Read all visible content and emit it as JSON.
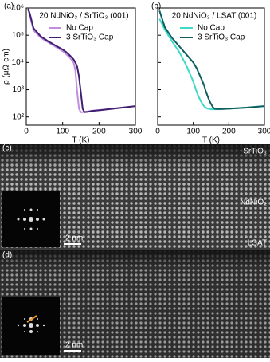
{
  "chart_data": [
    {
      "type": "line",
      "panel": "(a)",
      "title": "20 NdNiO₃ / SrTiO₃ (001)",
      "xlabel": "T (K)",
      "ylabel": "ρ (μΩ-cm)",
      "log_y": true,
      "xlim": [
        0,
        300
      ],
      "ylim": [
        50,
        1000000
      ],
      "xticks": [
        0,
        100,
        200,
        300
      ],
      "yticks": [
        {
          "value": 100,
          "label": "10²"
        },
        {
          "value": 1000,
          "label": "10³"
        },
        {
          "value": 10000,
          "label": "10⁴"
        },
        {
          "value": 100000,
          "label": "10⁵"
        },
        {
          "value": 1000000,
          "label": "10⁶"
        }
      ],
      "x": [
        5,
        10,
        20,
        40,
        60,
        80,
        100,
        110,
        120,
        130,
        135,
        140,
        145,
        150,
        155,
        160,
        170,
        180,
        200,
        250,
        300
      ],
      "series": [
        {
          "name": "No Cap",
          "color": "#c08ee0",
          "values": [
            900000,
            500000,
            150000,
            80000,
            55000,
            38000,
            26000,
            20000,
            15000,
            10000,
            5000,
            800,
            200,
            150,
            150,
            155,
            160,
            170,
            180,
            210,
            250
          ]
        },
        {
          "name": "3 SrTiO₃ Cap",
          "color": "#3f1f6f",
          "values": [
            950000,
            600000,
            180000,
            90000,
            60000,
            42000,
            30000,
            24000,
            18000,
            13000,
            10000,
            7000,
            3000,
            800,
            200,
            150,
            155,
            165,
            175,
            210,
            250
          ]
        }
      ]
    },
    {
      "type": "line",
      "panel": "(b)",
      "title": "20 NdNiO₃ / LSAT (001)",
      "xlabel": "T (K)",
      "log_y": true,
      "xlim": [
        0,
        300
      ],
      "ylim": [
        50,
        1000000
      ],
      "xticks": [
        0,
        100,
        200,
        300
      ],
      "yticks": [
        100,
        1000,
        10000,
        100000,
        1000000
      ],
      "x": [
        5,
        10,
        20,
        40,
        60,
        80,
        100,
        110,
        120,
        130,
        135,
        140,
        145,
        150,
        155,
        160,
        170,
        180,
        200,
        250,
        300
      ],
      "series": [
        {
          "name": "No Cap",
          "color": "#3fd9c8",
          "values": [
            400000,
            300000,
            160000,
            60000,
            25000,
            8000,
            2000,
            800,
            400,
            250,
            220,
            200,
            200,
            190,
            190,
            190,
            190,
            195,
            200,
            220,
            250
          ]
        },
        {
          "name": "3 SrTiO₃ Cap",
          "color": "#0e5e5e",
          "values": [
            800000,
            500000,
            200000,
            80000,
            40000,
            20000,
            10000,
            6000,
            3000,
            1500,
            900,
            600,
            400,
            300,
            230,
            200,
            195,
            195,
            200,
            220,
            250
          ]
        }
      ]
    }
  ],
  "images": [
    {
      "panel": "(c)",
      "labels": [
        "SrTiO₃",
        "NdNiO₂",
        "LSAT"
      ],
      "scale_bar": "2 nm"
    },
    {
      "panel": "(d)",
      "scale_bar": "2 nm"
    }
  ]
}
